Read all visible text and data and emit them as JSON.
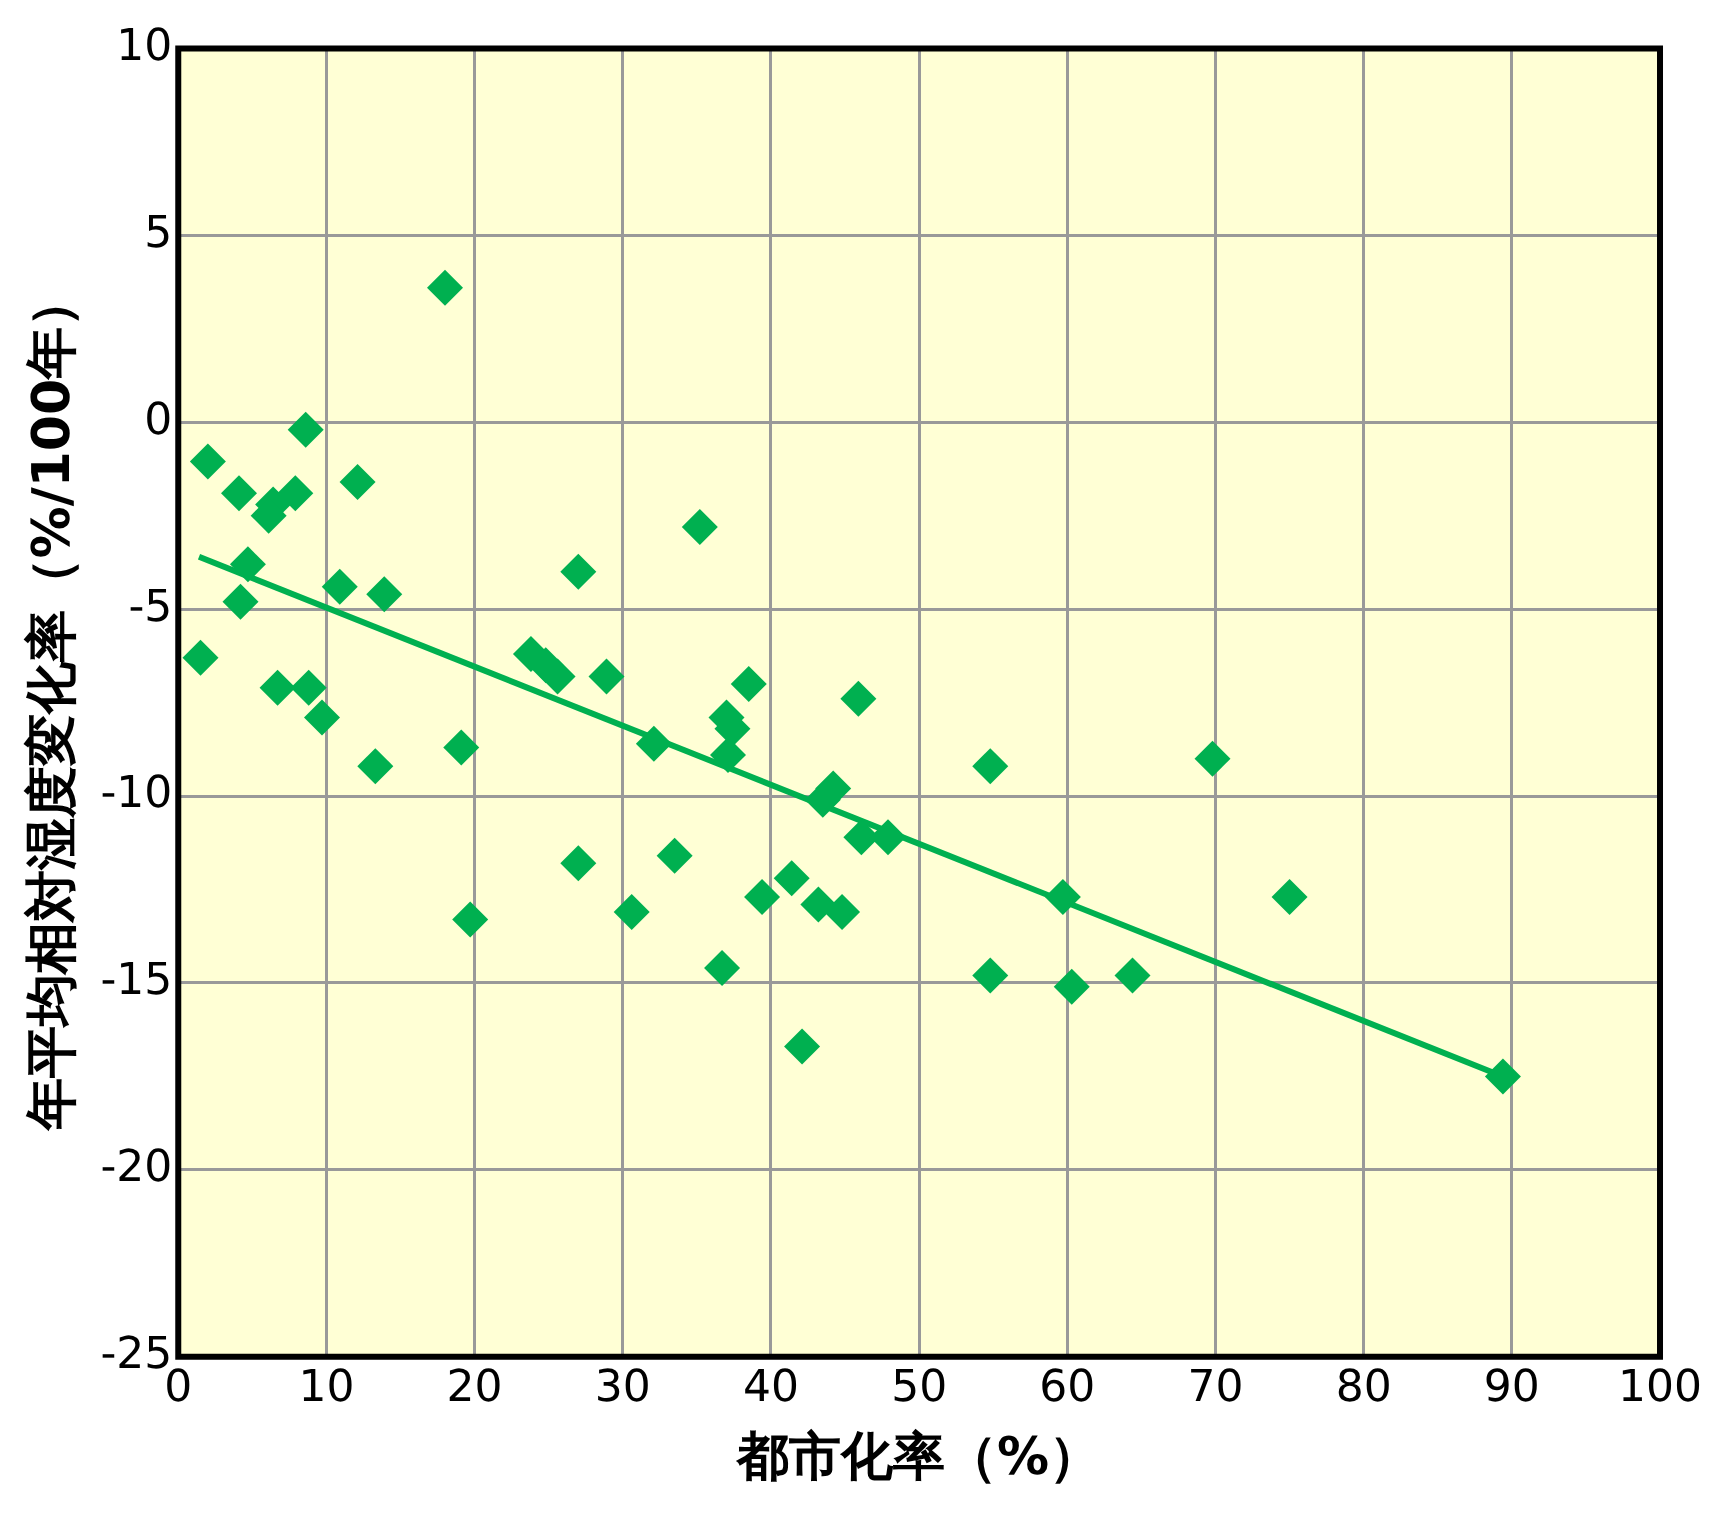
{
  "chart_data": {
    "type": "scatter",
    "xlabel": "都市化率（%）",
    "ylabel": "年平均相対湿度変化率（%/100年）",
    "xlim": [
      0,
      100
    ],
    "xticks": [
      0,
      10,
      20,
      30,
      40,
      50,
      60,
      70,
      80,
      90,
      100
    ],
    "ylim": [
      -25,
      10
    ],
    "yticks": [
      -25,
      -20,
      -15,
      -10,
      -5,
      0,
      5,
      10
    ],
    "grid": true,
    "legend": false,
    "marker": "diamond",
    "series": [
      {
        "color": "#00b050",
        "x": [
          2.0,
          4.1,
          6.4,
          7.9,
          8.6,
          12.1,
          18.0,
          6.1,
          4.7,
          4.2,
          1.5,
          10.9,
          13.9,
          6.7,
          8.8,
          9.7,
          13.3,
          19.1,
          19.7,
          27.0,
          35.2,
          23.8,
          24.8,
          25.6,
          28.9,
          27.0,
          30.6,
          32.1,
          33.5,
          37.0,
          37.4,
          37.1,
          38.5,
          36.7,
          39.4,
          41.4,
          43.2,
          44.8,
          44.2,
          43.5,
          45.9,
          46.1,
          47.9,
          42.1,
          54.8,
          54.8,
          59.7,
          60.3,
          64.4,
          69.8,
          75.0,
          89.4
        ],
        "values": [
          -1.05,
          -1.9,
          -2.2,
          -1.9,
          -0.2,
          -1.6,
          3.6,
          -2.5,
          -3.8,
          -4.8,
          -6.3,
          -4.4,
          -4.6,
          -7.1,
          -7.1,
          -7.9,
          -9.2,
          -8.7,
          -13.3,
          -4.0,
          -2.8,
          -6.2,
          -6.5,
          -6.8,
          -6.8,
          -11.8,
          -13.1,
          -8.6,
          -11.6,
          -7.9,
          -8.2,
          -8.9,
          -7.0,
          -14.6,
          -12.7,
          -12.2,
          -12.9,
          -13.1,
          -9.8,
          -10.1,
          -7.4,
          -11.1,
          -11.1,
          -16.7,
          -9.2,
          -14.8,
          -12.7,
          -15.1,
          -14.8,
          -9.0,
          -12.7,
          -17.5
        ]
      },
      {
        "type": "line",
        "color": "#00b050",
        "marker": "none",
        "x": [
          1.4,
          89.4
        ],
        "values": [
          -3.6,
          -17.5
        ]
      }
    ]
  }
}
